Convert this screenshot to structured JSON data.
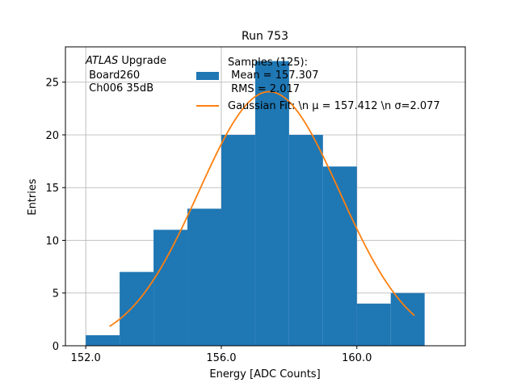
{
  "chart_data": {
    "type": "bar",
    "title": "Run 753",
    "xlabel": "Energy [ADC Counts]",
    "ylabel": "Entries",
    "xlim": [
      151.4,
      163.2
    ],
    "ylim": [
      0,
      28.35
    ],
    "grid": true,
    "x_ticks": [
      {
        "value": 152,
        "label": "152.0"
      },
      {
        "value": 156,
        "label": "156.0"
      },
      {
        "value": 160,
        "label": "160.0"
      }
    ],
    "y_ticks": [
      0,
      5,
      10,
      15,
      20,
      25
    ],
    "histogram": {
      "name": "Samples (125):\n Mean = 157.307\n RMS = 2.017",
      "color": "#1f77b4",
      "bin_edges": [
        152,
        153,
        154,
        155,
        156,
        157,
        158,
        159,
        160,
        161,
        162
      ],
      "counts": [
        1,
        7,
        11,
        13,
        20,
        27,
        20,
        17,
        4,
        5
      ]
    },
    "fit": {
      "name": "Gaussian Fit: \\n $\\mu$ = 157.412 \\n $\\sigma$=2.077",
      "color": "#ff7f0e",
      "x_range": [
        152.7,
        161.7
      ],
      "mu": 157.412,
      "sigma": 2.077,
      "amplitude": 24.1
    },
    "annotation": {
      "italic": "ATLAS",
      "line1_rest": " Upgrade",
      "line2": " Board260",
      "line3": " Ch006 35dB"
    },
    "legend": {
      "placement": "top-right",
      "hist_lines": [
        "Samples (125):",
        " Mean = 157.307",
        " RMS = 2.017"
      ],
      "fit_label": "Gaussian Fit: \\n μ = 157.412 \\n σ=2.077"
    }
  }
}
